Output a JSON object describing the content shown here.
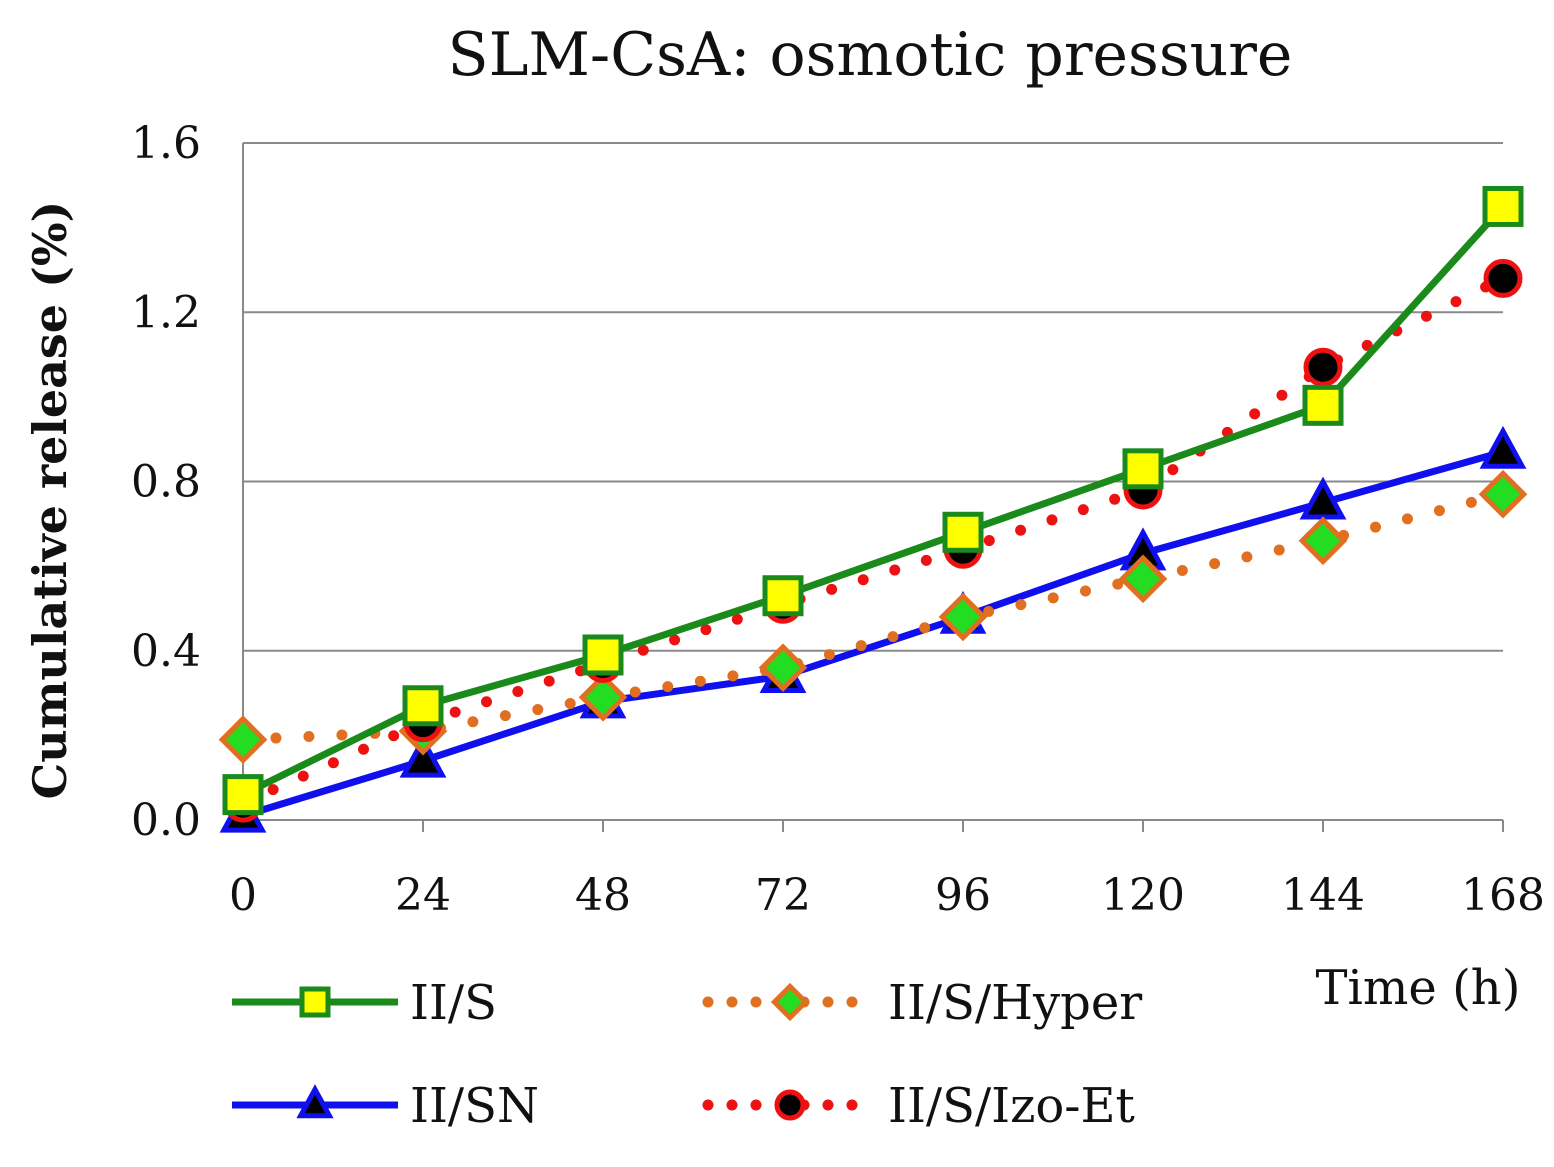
{
  "chart_data": {
    "type": "line",
    "title": "SLM-CsA: osmotic pressure",
    "xlabel": "Time (h)",
    "ylabel": "Cumulative  release (%)",
    "x": [
      0,
      24,
      48,
      72,
      96,
      120,
      144,
      168
    ],
    "x_tick_labels": [
      "0",
      "24",
      "48",
      "72",
      "96",
      "120",
      "144",
      "168"
    ],
    "y_tick_labels": [
      "0.0",
      "0.4",
      "0.8",
      "1.2",
      "1.6"
    ],
    "y_ticks": [
      0,
      0.4,
      0.8,
      1.2,
      1.6
    ],
    "xlim": [
      0,
      168
    ],
    "ylim": [
      0,
      1.6
    ],
    "grid": "horizontal",
    "legend_position": "bottom",
    "series": [
      {
        "name": "II/S",
        "values": [
          0.06,
          0.27,
          0.39,
          0.53,
          0.68,
          0.83,
          0.98,
          1.45
        ],
        "line_color": "#1a8a1a",
        "line_style": "solid",
        "marker": "square",
        "marker_fill": "#ffff00",
        "marker_edge": "#1a8a1a"
      },
      {
        "name": "II/S/Hyper",
        "values": [
          0.19,
          0.21,
          0.29,
          0.36,
          0.48,
          0.57,
          0.66,
          0.77
        ],
        "line_color": "#e07020",
        "line_style": "dotted",
        "marker": "diamond",
        "marker_fill": "#22dd22",
        "marker_edge": "#e07020"
      },
      {
        "name": "II/SN",
        "values": [
          0.01,
          0.14,
          0.28,
          0.34,
          0.48,
          0.63,
          0.75,
          0.87
        ],
        "line_color": "#1010ee",
        "line_style": "solid",
        "marker": "triangle",
        "marker_fill": "#000000",
        "marker_edge": "#1010ee"
      },
      {
        "name": "II/S/Izo-Et",
        "values": [
          0.04,
          0.23,
          0.37,
          0.51,
          0.64,
          0.78,
          1.07,
          1.28
        ],
        "line_color": "#ee1111",
        "line_style": "dotted",
        "marker": "circle",
        "marker_fill": "#000000",
        "marker_edge": "#ee1111"
      }
    ]
  }
}
